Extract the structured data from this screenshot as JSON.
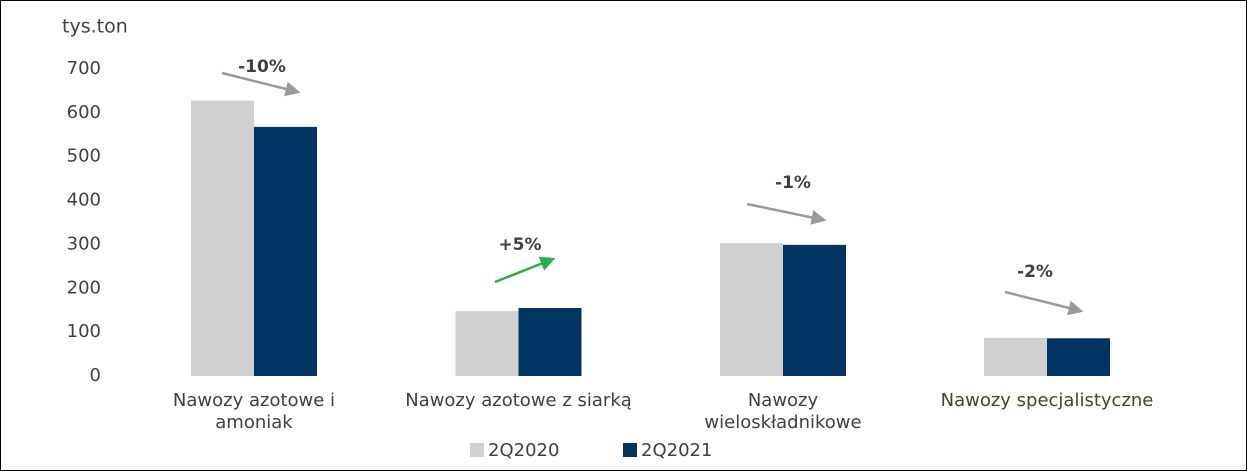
{
  "chart_data": {
    "type": "bar",
    "y_axis_label": "tys.ton",
    "categories": [
      "Nawozy azotowe i amoniak",
      "Nawozy azotowe z siarką",
      "Nawozy wieloskładnikowe",
      "Nawozy specjalistyczne"
    ],
    "series": [
      {
        "name": "2Q2020",
        "color": "#d0d0d0",
        "values": [
          628,
          148,
          303,
          87
        ]
      },
      {
        "name": "2Q2021",
        "color": "#003462",
        "values": [
          568,
          155,
          299,
          86
        ]
      }
    ],
    "ylim": [
      0,
      700
    ],
    "yticks": [
      0,
      100,
      200,
      300,
      400,
      500,
      600,
      700
    ],
    "annotations": [
      {
        "text": "-10%",
        "color": "#999999"
      },
      {
        "text": "+5%",
        "color": "#22b14c"
      },
      {
        "text": "-1%",
        "color": "#999999"
      },
      {
        "text": "-2%",
        "color": "#999999"
      }
    ]
  }
}
